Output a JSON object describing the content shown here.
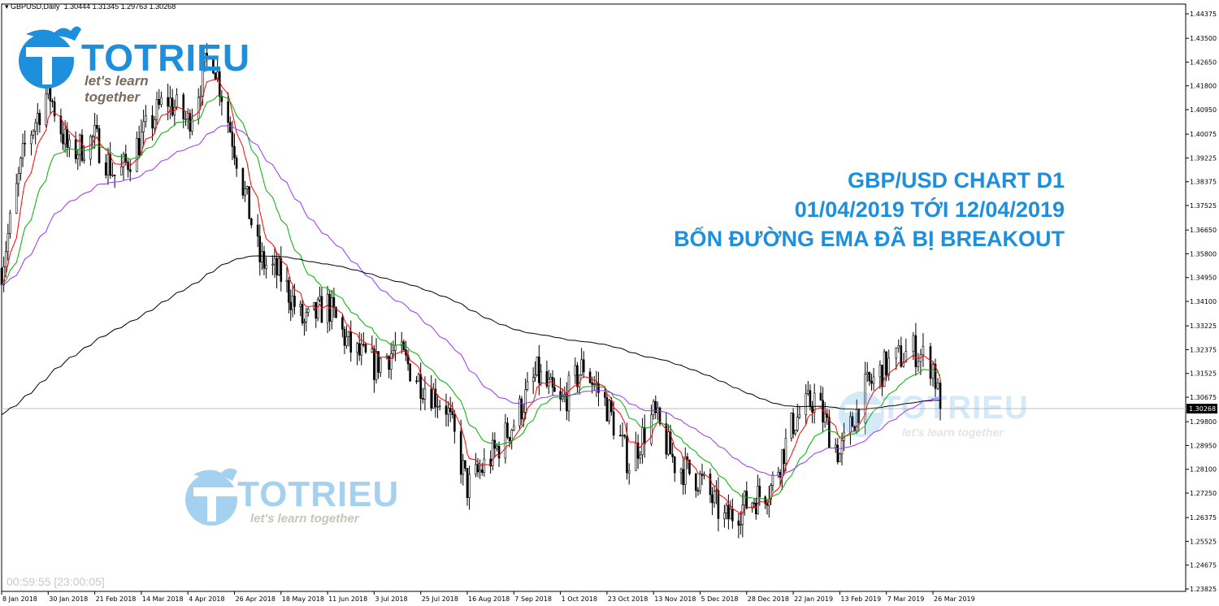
{
  "header": {
    "symbol": "GBPUSD,Daily",
    "ohlc": "1.30444 1.31345 1.29763 1.30268"
  },
  "timer": "00:59:55 [23:00:05]",
  "annotation": {
    "line1": "GBP/USD CHART D1",
    "line2": "01/04/2019 TỚI 12/04/2019",
    "line3": "BỐN ĐƯỜNG EMA ĐÃ BỊ BREAKOUT"
  },
  "logo": {
    "word": "TOTRIEU",
    "tagline": "let's learn together"
  },
  "colors": {
    "accent": "#1e8fdc",
    "ema_fast": "#ff0000",
    "ema_mid": "#00b000",
    "ema_slow": "#9933ff",
    "ema_200": "#000000",
    "watermark": "#b9dcf5"
  },
  "chart_data": {
    "type": "candlestick",
    "symbol": "GBPUSD",
    "timeframe": "Daily",
    "current_price": 1.30268,
    "ylim": [
      1.23825,
      1.44375
    ],
    "y_ticks": [
      1.44375,
      1.435,
      1.4265,
      1.418,
      1.4095,
      1.40075,
      1.39225,
      1.38375,
      1.37525,
      1.3665,
      1.358,
      1.3495,
      1.341,
      1.33225,
      1.32375,
      1.31525,
      1.30675,
      1.298,
      1.2895,
      1.281,
      1.2725,
      1.26375,
      1.25525,
      1.24675,
      1.23825
    ],
    "x_ticks": [
      "8 Jan 2018",
      "30 Jan 2018",
      "21 Feb 2018",
      "14 Mar 2018",
      "4 Apr 2018",
      "26 Apr 2018",
      "18 May 2018",
      "11 Jun 2018",
      "3 Jul 2018",
      "25 Jul 2018",
      "16 Aug 2018",
      "7 Sep 2018",
      "1 Oct 2018",
      "23 Oct 2018",
      "13 Nov 2018",
      "5 Dec 2018",
      "28 Dec 2018",
      "22 Jan 2019",
      "13 Feb 2019",
      "7 Mar 2019",
      "26 Mar 2019"
    ],
    "x_tick_dates": [
      "2018-01-08",
      "2018-01-30",
      "2018-02-21",
      "2018-03-14",
      "2018-04-04",
      "2018-04-26",
      "2018-05-18",
      "2018-06-11",
      "2018-07-03",
      "2018-07-25",
      "2018-08-16",
      "2018-09-07",
      "2018-10-01",
      "2018-10-23",
      "2018-11-13",
      "2018-12-05",
      "2018-12-28",
      "2019-01-22",
      "2019-02-13",
      "2019-03-07",
      "2019-03-26"
    ],
    "approx_closes": [
      [
        "2018-01-08",
        1.3529
      ],
      [
        "2018-01-19",
        1.3964
      ],
      [
        "2018-01-30",
        1.4168
      ],
      [
        "2018-02-09",
        1.3935
      ],
      [
        "2018-02-21",
        1.3993
      ],
      [
        "2018-03-03",
        1.3848
      ],
      [
        "2018-03-14",
        1.3993
      ],
      [
        "2018-03-25",
        1.4138
      ],
      [
        "2018-04-04",
        1.4051
      ],
      [
        "2018-04-15",
        1.4313
      ],
      [
        "2018-04-26",
        1.3964
      ],
      [
        "2018-05-08",
        1.3558
      ],
      [
        "2018-05-18",
        1.35
      ],
      [
        "2018-05-30",
        1.3326
      ],
      [
        "2018-06-11",
        1.3398
      ],
      [
        "2018-06-22",
        1.3239
      ],
      [
        "2018-07-03",
        1.3181
      ],
      [
        "2018-07-13",
        1.3239
      ],
      [
        "2018-07-25",
        1.3123
      ],
      [
        "2018-08-06",
        1.3036
      ],
      [
        "2018-08-16",
        1.2745
      ],
      [
        "2018-08-28",
        1.2861
      ],
      [
        "2018-09-07",
        1.2977
      ],
      [
        "2018-09-19",
        1.3152
      ],
      [
        "2018-10-01",
        1.3036
      ],
      [
        "2018-10-12",
        1.3181
      ],
      [
        "2018-10-23",
        1.3036
      ],
      [
        "2018-11-02",
        1.2832
      ],
      [
        "2018-11-13",
        1.3006
      ],
      [
        "2018-11-23",
        1.2832
      ],
      [
        "2018-12-05",
        1.2774
      ],
      [
        "2018-12-17",
        1.2629
      ],
      [
        "2018-12-28",
        1.2687
      ],
      [
        "2019-01-10",
        1.2745
      ],
      [
        "2019-01-22",
        1.2977
      ],
      [
        "2019-02-01",
        1.3065
      ],
      [
        "2019-02-13",
        1.2861
      ],
      [
        "2019-02-25",
        1.3094
      ],
      [
        "2019-03-07",
        1.3181
      ],
      [
        "2019-03-18",
        1.3239
      ],
      [
        "2019-03-26",
        1.3181
      ],
      [
        "2019-03-29",
        1.30268
      ]
    ],
    "indicators": [
      {
        "name": "EMA",
        "color": "#ff0000"
      },
      {
        "name": "EMA",
        "color": "#00b000"
      },
      {
        "name": "EMA",
        "color": "#9933ff"
      },
      {
        "name": "EMA",
        "color": "#000000"
      }
    ],
    "grid": false
  }
}
